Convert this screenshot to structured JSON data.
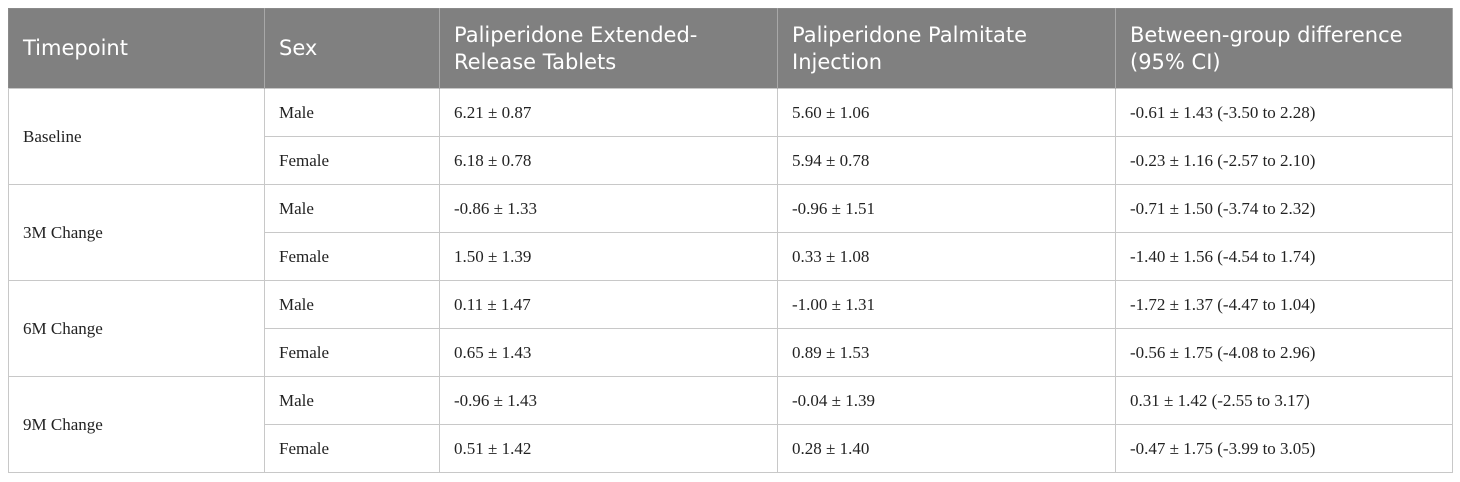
{
  "table": {
    "header": [
      "Timepoint",
      "Sex",
      "Paliperidone Extended-Release Tablets",
      "Paliperidone Palmitate Injection",
      "Between-group difference (95% CI)"
    ],
    "groups": [
      {
        "timepoint": "Baseline",
        "rows": [
          [
            "Male",
            "6.21 ± 0.87",
            "5.60 ± 1.06",
            "-0.61 ± 1.43 (-3.50 to 2.28)"
          ],
          [
            "Female",
            "6.18 ± 0.78",
            "5.94 ± 0.78",
            "-0.23 ± 1.16 (-2.57 to 2.10)"
          ]
        ]
      },
      {
        "timepoint": "3M Change",
        "rows": [
          [
            "Male",
            "-0.86 ± 1.33",
            "-0.96 ± 1.51",
            "-0.71 ± 1.50 (-3.74 to 2.32)"
          ],
          [
            "Female",
            "1.50 ± 1.39",
            "0.33 ± 1.08",
            "-1.40 ± 1.56 (-4.54 to 1.74)"
          ]
        ]
      },
      {
        "timepoint": "6M Change",
        "rows": [
          [
            "Male",
            "0.11 ± 1.47",
            "-1.00 ± 1.31",
            "-1.72 ± 1.37 (-4.47 to 1.04)"
          ],
          [
            "Female",
            "0.65 ± 1.43",
            "0.89 ± 1.53",
            "-0.56 ± 1.75 (-4.08 to 2.96)"
          ]
        ]
      },
      {
        "timepoint": "9M Change",
        "rows": [
          [
            "Male",
            "-0.96 ± 1.43",
            "-0.04 ± 1.39",
            "0.31 ± 1.42 (-2.55 to 3.17)"
          ],
          [
            "Female",
            "0.51 ± 1.42",
            "0.28 ± 1.40",
            "-0.47 ± 1.75 (-3.99 to 3.05)"
          ]
        ]
      }
    ]
  }
}
